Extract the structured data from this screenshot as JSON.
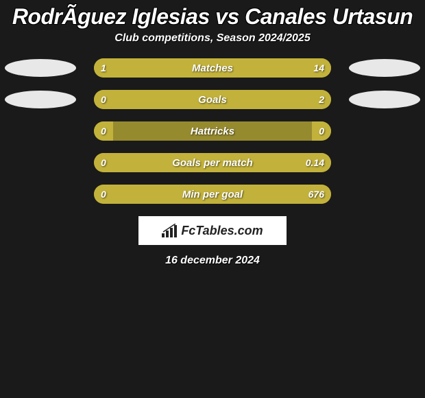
{
  "title": "RodrÃ­guez Iglesias vs Canales Urtasun",
  "subtitle": "Club competitions, Season 2024/2025",
  "date_text": "16 december 2024",
  "logo_text": "FcTables.com",
  "colors": {
    "bar_light": "#c2b23b",
    "bar_dark": "#968a2f",
    "background": "#1a1a1a",
    "oval": "#e8e8e8"
  },
  "rows": [
    {
      "label": "Matches",
      "left_val": "1",
      "right_val": "14",
      "left_pct": 18,
      "right_pct": 82,
      "show_ovals": true
    },
    {
      "label": "Goals",
      "left_val": "0",
      "right_val": "2",
      "left_pct": 8,
      "right_pct": 92,
      "show_ovals": true
    },
    {
      "label": "Hattricks",
      "left_val": "0",
      "right_val": "0",
      "left_pct": 8,
      "right_pct": 8,
      "show_ovals": false
    },
    {
      "label": "Goals per match",
      "left_val": "0",
      "right_val": "0.14",
      "left_pct": 8,
      "right_pct": 92,
      "show_ovals": false
    },
    {
      "label": "Min per goal",
      "left_val": "0",
      "right_val": "676",
      "left_pct": 8,
      "right_pct": 92,
      "show_ovals": false
    }
  ]
}
